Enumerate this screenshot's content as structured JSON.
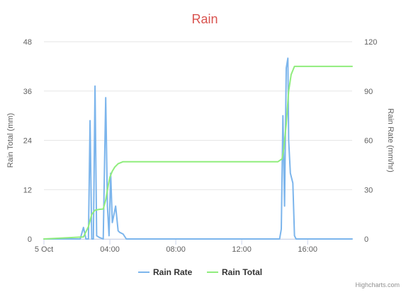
{
  "chart_data": {
    "type": "line",
    "title": "Rain",
    "x_ticks": [
      "5 Oct",
      "04:00",
      "08:00",
      "12:00",
      "16:00"
    ],
    "x_range_hours": [
      0,
      18.7
    ],
    "y_left": {
      "label": "Rain Total (mm)",
      "ticks": [
        "0",
        "12",
        "24",
        "36",
        "48"
      ],
      "range": [
        0,
        48
      ]
    },
    "y_right": {
      "label": "Rain Rate (mm/hr)",
      "ticks": [
        "0",
        "30",
        "60",
        "90",
        "120"
      ],
      "range": [
        0,
        120
      ]
    },
    "series": [
      {
        "name": "Rain Rate",
        "axis": "right",
        "color": "#7cb5ec",
        "x": [
          0,
          2.2,
          2.4,
          2.55,
          2.7,
          2.8,
          2.9,
          3.0,
          3.1,
          3.2,
          3.35,
          3.6,
          3.75,
          3.85,
          3.95,
          4.05,
          4.15,
          4.25,
          4.35,
          4.5,
          4.6,
          4.8,
          5.0,
          5.3,
          14.3,
          14.4,
          14.5,
          14.6,
          14.7,
          14.8,
          14.85,
          14.95,
          15.1,
          15.2,
          15.3,
          15.5,
          16.0,
          18.7
        ],
        "y": [
          0,
          0,
          7,
          0,
          0,
          72,
          0,
          0,
          93,
          2,
          1,
          0,
          86,
          20,
          2,
          40,
          10,
          15,
          20,
          5,
          4,
          3,
          0,
          0,
          0,
          6,
          75,
          20,
          104,
          110,
          60,
          40,
          34,
          2,
          0,
          0,
          0,
          0
        ]
      },
      {
        "name": "Rain Total",
        "axis": "left",
        "color": "#90ed7d",
        "x": [
          0,
          2.4,
          2.7,
          2.9,
          3.1,
          3.35,
          3.6,
          3.75,
          3.9,
          4.0,
          4.15,
          4.3,
          4.5,
          4.8,
          5.2,
          14.2,
          14.45,
          14.55,
          14.7,
          14.85,
          15.0,
          15.2,
          15.4,
          18.7
        ],
        "y": [
          0,
          0.5,
          3,
          6,
          7,
          7.2,
          7.3,
          9.5,
          13,
          15,
          16.5,
          17.5,
          18.3,
          18.8,
          18.8,
          18.8,
          19.5,
          22,
          28,
          36,
          40,
          42,
          42,
          42
        ]
      }
    ],
    "legend": [
      "Rain Rate",
      "Rain Total"
    ],
    "legend_position": "bottom-center",
    "grid": true
  },
  "credits": "Highcharts.com"
}
